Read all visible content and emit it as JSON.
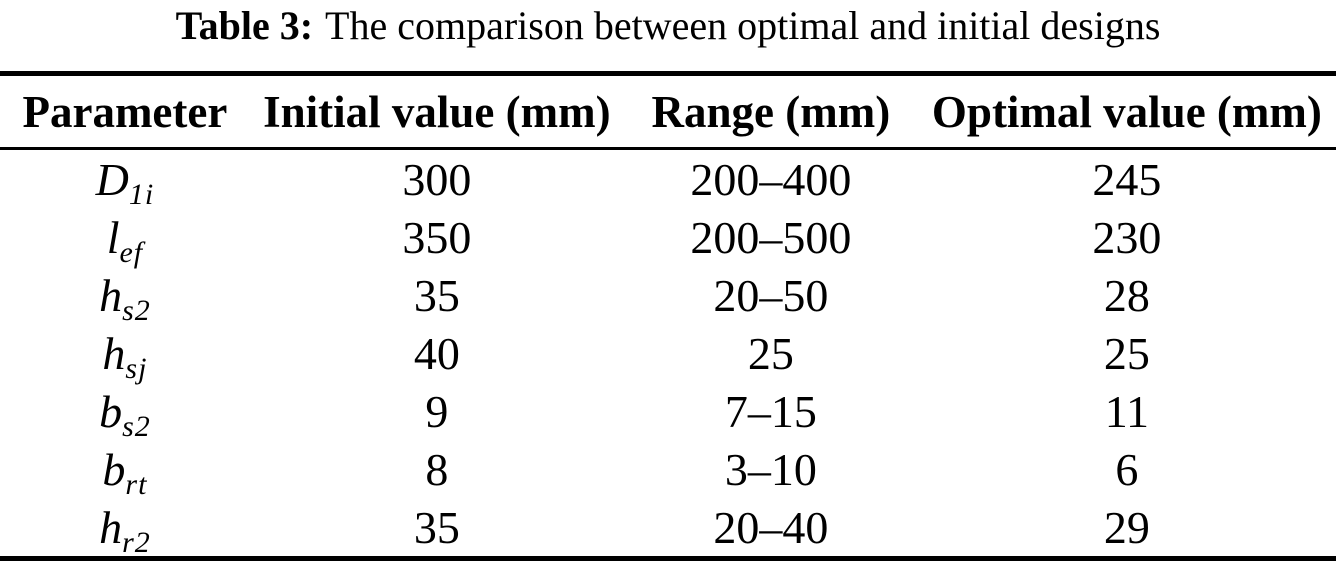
{
  "title": {
    "label": "Table 3:",
    "text": "The comparison between optimal and initial designs"
  },
  "table": {
    "headers": [
      "Parameter",
      "Initial value (mm)",
      "Range (mm)",
      "Optimal value (mm)"
    ],
    "rows": [
      {
        "param_base": "D",
        "param_sub": "1i",
        "initial": "300",
        "range": "200–400",
        "optimal": "245"
      },
      {
        "param_base": "l",
        "param_sub": "ef",
        "initial": "350",
        "range": "200–500",
        "optimal": "230"
      },
      {
        "param_base": "h",
        "param_sub": "s2",
        "initial": "35",
        "range": "20–50",
        "optimal": "28"
      },
      {
        "param_base": "h",
        "param_sub": "sj",
        "initial": "40",
        "range": "25",
        "optimal": "25"
      },
      {
        "param_base": "b",
        "param_sub": "s2",
        "initial": "9",
        "range": "7–15",
        "optimal": "11"
      },
      {
        "param_base": "b",
        "param_sub": "rt",
        "initial": "8",
        "range": "3–10",
        "optimal": "6"
      },
      {
        "param_base": "h",
        "param_sub": "r2",
        "initial": "35",
        "range": "20–40",
        "optimal": "29"
      }
    ]
  },
  "colors": {
    "text": "#000000",
    "background": "#ffffff",
    "rule": "#000000"
  }
}
